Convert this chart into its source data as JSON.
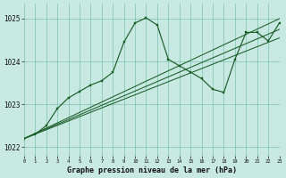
{
  "title": "Graphe pression niveau de la mer (hPa)",
  "bg_color": "#c8e8e2",
  "line_color": "#1a5e28",
  "grid_color": "#88c8b8",
  "xlim": [
    0,
    23
  ],
  "ylim": [
    1021.8,
    1025.35
  ],
  "yticks": [
    1022,
    1023,
    1024,
    1025
  ],
  "xticks": [
    0,
    1,
    2,
    3,
    4,
    5,
    6,
    7,
    8,
    9,
    10,
    11,
    12,
    13,
    14,
    15,
    16,
    17,
    18,
    19,
    20,
    21,
    22,
    23
  ],
  "series1_x": [
    0,
    1,
    2,
    3,
    4,
    5,
    6,
    7,
    8,
    9,
    10,
    11,
    12,
    13,
    14,
    15,
    16,
    17,
    18,
    19,
    20,
    21,
    22,
    23
  ],
  "series1_y": [
    1022.2,
    1022.3,
    1022.5,
    1022.9,
    1023.15,
    1023.3,
    1023.45,
    1023.55,
    1023.75,
    1024.45,
    1024.9,
    1025.02,
    1024.85,
    1024.05,
    1023.9,
    1023.75,
    1023.6,
    1023.35,
    1023.28,
    1024.05,
    1024.68,
    1024.68,
    1024.48,
    1024.9
  ],
  "trend1_x": [
    0,
    23
  ],
  "trend1_y": [
    1022.2,
    1025.0
  ],
  "trend2_x": [
    0,
    23
  ],
  "trend2_y": [
    1022.2,
    1024.75
  ],
  "trend3_x": [
    0,
    23
  ],
  "trend3_y": [
    1022.2,
    1024.55
  ]
}
